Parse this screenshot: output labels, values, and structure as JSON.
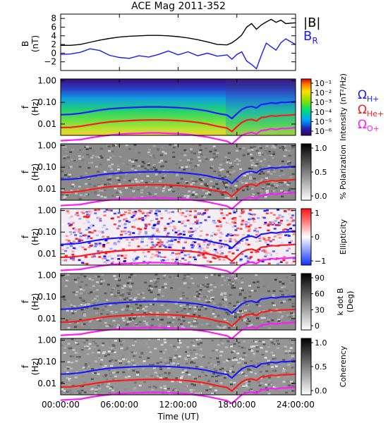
{
  "chart_data": {
    "title": "ACE Mag 2011-352",
    "xlabel": "Time (UT)",
    "x_ticks": [
      "00:00:00",
      "06:00:00",
      "12:00:00",
      "18:00:00",
      "24:00:00"
    ],
    "panels": [
      {
        "type": "line",
        "ylabel": "B",
        "yunit": "(nT)",
        "ylim": [
          -4,
          9
        ],
        "y_ticks": [
          "8",
          "6",
          "4",
          "2",
          "0",
          "−2"
        ],
        "series": [
          {
            "name": "|B|",
            "color": "#000000",
            "x_hours": [
              0,
              1,
              2,
              3,
              4,
              5,
              6,
              7,
              8,
              9,
              10,
              11,
              12,
              13,
              14,
              15,
              16,
              17,
              17.5,
              18,
              18.5,
              19,
              19.5,
              20,
              20.5,
              21,
              21.5,
              22,
              22.5,
              23,
              24
            ],
            "values": [
              1.8,
              1.8,
              2.0,
              2.5,
              3.0,
              3.4,
              3.7,
              3.9,
              4.0,
              4.1,
              4.1,
              4.0,
              3.8,
              3.5,
              3.1,
              2.6,
              2.0,
              1.9,
              2.4,
              3.2,
              4.2,
              6.0,
              6.8,
              5.5,
              6.5,
              7.2,
              7.8,
              7.1,
              7.6,
              6.8,
              7.0
            ]
          },
          {
            "name": "B",
            "subscript": "R",
            "color": "#1a1aff",
            "x_hours": [
              0,
              1,
              2,
              3,
              4,
              5,
              6,
              7,
              8,
              9,
              10,
              11,
              12,
              13,
              14,
              15,
              16,
              17,
              17.5,
              18,
              18.5,
              19,
              19.5,
              20,
              20.5,
              21,
              21.5,
              22,
              22.5,
              23,
              24
            ],
            "values": [
              -0.3,
              -0.2,
              0.2,
              1.0,
              0.6,
              -0.5,
              -1.0,
              -1.2,
              -0.6,
              -0.9,
              -0.3,
              0.5,
              -0.4,
              0.3,
              -0.6,
              0.0,
              -0.7,
              -0.4,
              -1.4,
              -0.3,
              0.3,
              -1.8,
              -2.6,
              -3.6,
              -0.5,
              2.3,
              1.5,
              0.7,
              2.4,
              3.3,
              2.0
            ]
          }
        ]
      },
      {
        "type": "heatmap",
        "ylabel": "f",
        "yunit": "(Hz)",
        "y_ticks": [
          "1.00",
          "0.10",
          "0.01"
        ],
        "colorbar_label": "Intensity (nT²/Hz)",
        "colorbar_ticks": [
          "10⁻¹",
          "10⁻²",
          "10⁻³",
          "10⁻⁴",
          "10⁻⁵",
          "10⁻⁶"
        ],
        "colormap": "rainbow",
        "legend": [
          {
            "label": "Ω",
            "subscript": "H+",
            "color": "#1a1aff"
          },
          {
            "label": "Ω",
            "subscript": "He+",
            "color": "#ff1a1a"
          },
          {
            "label": "Ω",
            "subscript": "O+",
            "color": "#ff1aff"
          }
        ]
      },
      {
        "type": "heatmap",
        "ylabel": "f",
        "yunit": "(Hz)",
        "y_ticks": [
          "1.00",
          "0.10",
          "0.01"
        ],
        "colorbar_label": "% Polarization",
        "colorbar_ticks": [
          "1.0",
          "0.5",
          "0.0"
        ],
        "colormap": "gray"
      },
      {
        "type": "heatmap",
        "ylabel": "f",
        "yunit": "(Hz)",
        "y_ticks": [
          "1.00",
          "0.10",
          "0.01"
        ],
        "colorbar_label": "Ellipticity",
        "colorbar_ticks": [
          "1",
          "0",
          "−1"
        ],
        "colormap": "bluewhitered"
      },
      {
        "type": "heatmap",
        "ylabel": "f",
        "yunit": "(Hz)",
        "y_ticks": [
          "1.00",
          "0.10",
          "0.01"
        ],
        "colorbar_label": "k dot B",
        "colorbar_unit": "(Deg)",
        "colorbar_ticks": [
          "90",
          "60",
          "30",
          "0"
        ],
        "colormap": "gray"
      },
      {
        "type": "heatmap",
        "ylabel": "f",
        "yunit": "(Hz)",
        "y_ticks": [
          "1.00",
          "0.10",
          "0.01"
        ],
        "colorbar_label": "Coherency",
        "colorbar_ticks": [
          "1.0",
          "0.5",
          "0.0"
        ],
        "colormap": "gray"
      }
    ],
    "gyrofrequency_lines": {
      "x_hours": [
        0,
        1,
        2,
        3,
        4,
        5,
        6,
        7,
        8,
        9,
        10,
        11,
        12,
        13,
        14,
        15,
        16,
        17,
        17.5,
        18,
        18.5,
        19,
        19.5,
        20,
        20.5,
        21,
        21.5,
        22,
        22.5,
        23,
        24
      ],
      "H+_hz": [
        0.027,
        0.028,
        0.031,
        0.037,
        0.044,
        0.05,
        0.054,
        0.057,
        0.06,
        0.062,
        0.062,
        0.06,
        0.057,
        0.053,
        0.047,
        0.04,
        0.031,
        0.026,
        0.018,
        0.03,
        0.047,
        0.06,
        0.065,
        0.055,
        0.08,
        0.085,
        0.095,
        0.09,
        0.1,
        0.1,
        0.11
      ],
      "He+_hz": [
        0.0069,
        0.007,
        0.0078,
        0.0093,
        0.011,
        0.0125,
        0.0135,
        0.0143,
        0.015,
        0.0155,
        0.0155,
        0.015,
        0.0143,
        0.0133,
        0.0118,
        0.01,
        0.0078,
        0.0065,
        0.0045,
        0.0075,
        0.0118,
        0.015,
        0.0163,
        0.0138,
        0.02,
        0.021,
        0.024,
        0.023,
        0.025,
        0.025,
        0.027
      ],
      "O+_hz": [
        0.0017,
        0.0018,
        0.0019,
        0.0023,
        0.0027,
        0.0031,
        0.0034,
        0.0036,
        0.0037,
        0.0039,
        0.0039,
        0.0037,
        0.0036,
        0.0033,
        0.0029,
        0.0025,
        0.002,
        0.0016,
        0.0012,
        0.0019,
        0.003,
        0.0037,
        0.0041,
        0.0035,
        0.005,
        0.0053,
        0.006,
        0.0056,
        0.0062,
        0.0062,
        0.0068
      ]
    }
  }
}
